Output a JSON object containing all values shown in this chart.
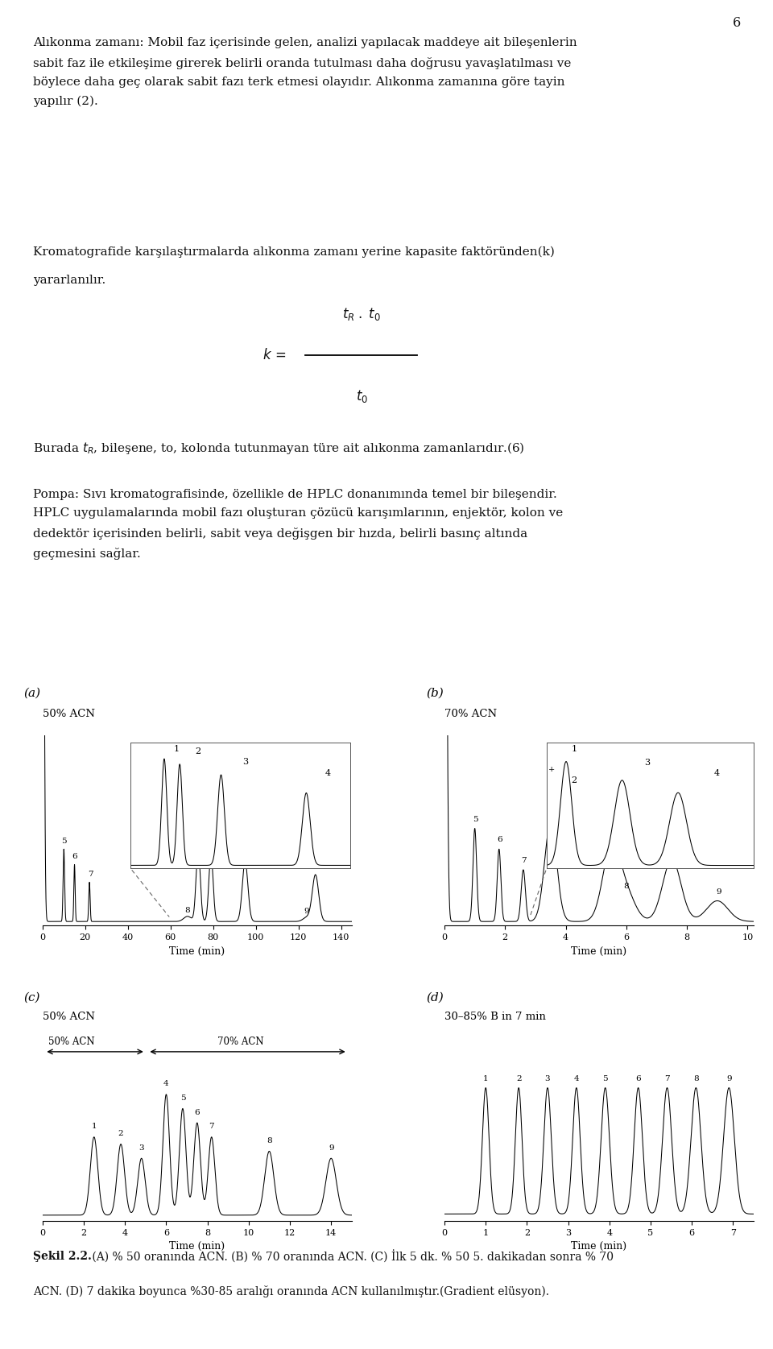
{
  "page_number": "6",
  "bg": "#ffffff",
  "tc": "#111111",
  "p1": "Alıkonma zamanı: Mobil faz içerisinde gelen, analizi yapılacak maddeye ait bileşenlerin\nsabit faz ile etkileşime girerek belirli oranda tutulması daha doğrusu yavaşlatılması ve\nböylece daha geç olarak sabit fazı terk etmesi olayıdır. Alıkonma zamanına göre tayin\nyapılır (2).",
  "p2a": "Kromatografide karşılaştırmalarda alıkonma zamanı yerine kapasite faktöründen(k)",
  "p2b": "yararlanılır.",
  "p3": "Burada $t_R$, bileşene, to, kolonda tutunmayan türe ait alıkonma zamanlarıdır.(6)",
  "p4": "Pompa: Sıvı kromatografisinde, özellikle de HPLC donanımında temel bir bileşendir.\nHPLC uygulamalarında mobil fazı oluşturan çözücü karışımlarının, enjektör, kolon ve\ndedektör içerisinden belirli, sabit veya değişgen bir hızda, belirli basınç altında\ngeçmesini sağlar.",
  "cap1": "Şekil 2.2.",
  "cap2": " (A) % 50 oranında ACN. (B) % 70 oranında ACN. (C) İlk 5 dk. % 50 5. dakikadan sonra % 70",
  "cap3": "ACN. (D) 7 dakika boyunca %30-85 aralığı oranında ACN kullanılmıştır.(Gradient elüsyon)."
}
